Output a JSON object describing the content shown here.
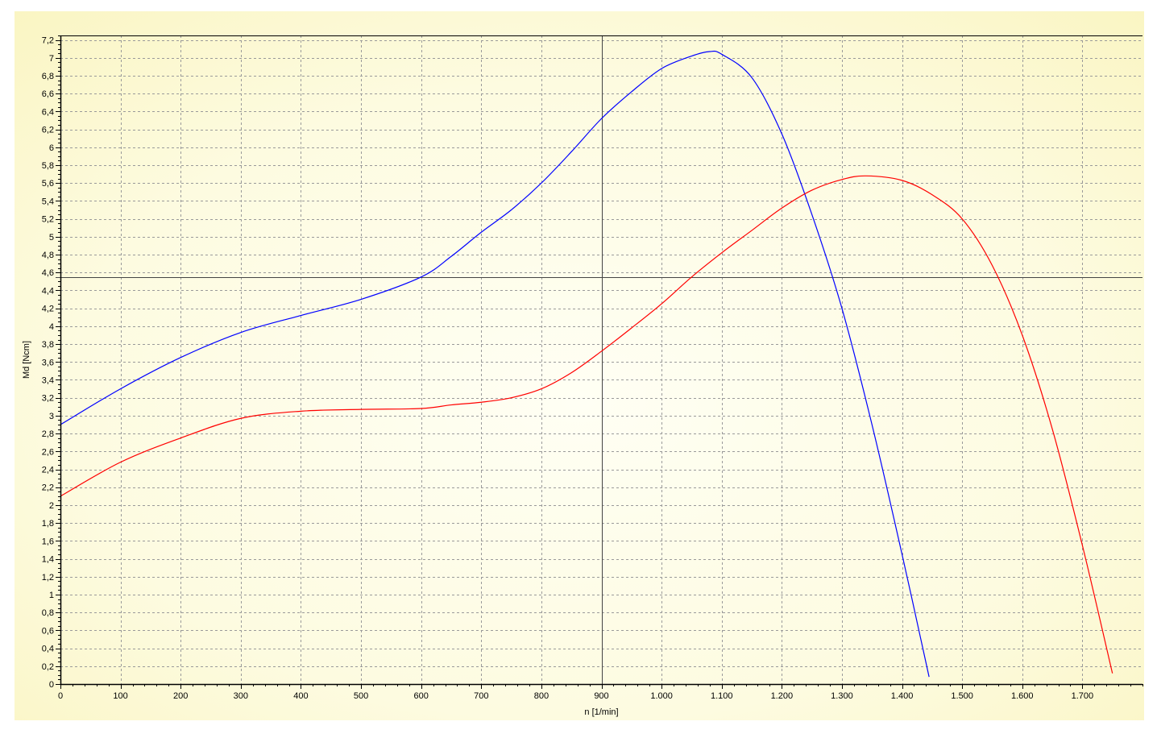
{
  "chart_data": {
    "type": "line",
    "title": "",
    "xlabel": "n [1/min]",
    "ylabel": "Md [Ncm]",
    "xlim": [
      0,
      1800
    ],
    "ylim": [
      0,
      7.25
    ],
    "x_ticks": [
      0,
      100,
      200,
      300,
      400,
      500,
      600,
      700,
      800,
      900,
      1000,
      1100,
      1200,
      1300,
      1400,
      1500,
      1600,
      1700
    ],
    "x_tick_labels": [
      "0",
      "100",
      "200",
      "300",
      "400",
      "500",
      "600",
      "700",
      "800",
      "900",
      "1.000",
      "1.100",
      "1.200",
      "1.300",
      "1.400",
      "1.500",
      "1.600",
      "1.700"
    ],
    "x_minor_step": 20,
    "y_ticks": [
      0,
      0.2,
      0.4,
      0.6,
      0.8,
      1,
      1.2,
      1.4,
      1.6,
      1.8,
      2,
      2.2,
      2.4,
      2.6,
      2.8,
      3,
      3.2,
      3.4,
      3.6,
      3.8,
      4,
      4.2,
      4.4,
      4.6,
      4.8,
      5,
      5.2,
      5.4,
      5.6,
      5.8,
      6,
      6.2,
      6.4,
      6.6,
      6.8,
      7,
      7.2
    ],
    "y_tick_labels": [
      "0",
      "0,2",
      "0,4",
      "0,6",
      "0,8",
      "1",
      "1,2",
      "1,4",
      "1,6",
      "1,8",
      "2",
      "2,2",
      "2,4",
      "2,6",
      "2,8",
      "3",
      "3,2",
      "3,4",
      "3,6",
      "3,8",
      "4",
      "4,2",
      "4,4",
      "4,6",
      "4,8",
      "5",
      "5,2",
      "5,4",
      "5,6",
      "5,8",
      "6",
      "6,2",
      "6,4",
      "6,6",
      "6,8",
      "7",
      "7,2"
    ],
    "y_minor_step": 0.05,
    "grid": true,
    "crosshair": {
      "x": 900,
      "y": 4.55
    },
    "background": {
      "top": "#fdfbe0",
      "center": "#fffff4",
      "bottom": "#faf5c2"
    },
    "colors": {
      "grid": "#9a9a9a",
      "axis": "#000000",
      "crosshair": "#444444"
    },
    "series": [
      {
        "color": "#0000ff",
        "x": [
          0,
          100,
          200,
          300,
          400,
          500,
          600,
          650,
          700,
          750,
          800,
          850,
          900,
          950,
          1000,
          1050,
          1080,
          1100,
          1150,
          1200,
          1250,
          1300,
          1350,
          1400,
          1445
        ],
        "y": [
          2.9,
          3.3,
          3.65,
          3.93,
          4.12,
          4.3,
          4.55,
          4.78,
          5.05,
          5.3,
          5.6,
          5.95,
          6.32,
          6.62,
          6.88,
          7.02,
          7.07,
          7.04,
          6.78,
          6.15,
          5.25,
          4.2,
          2.9,
          1.45,
          0.08
        ]
      },
      {
        "color": "#ff0000",
        "x": [
          0,
          100,
          200,
          300,
          400,
          500,
          600,
          650,
          700,
          750,
          800,
          850,
          900,
          950,
          1000,
          1050,
          1100,
          1150,
          1200,
          1250,
          1300,
          1340,
          1400,
          1450,
          1500,
          1550,
          1600,
          1650,
          1700,
          1750
        ],
        "y": [
          2.1,
          2.48,
          2.75,
          2.97,
          3.05,
          3.07,
          3.08,
          3.12,
          3.15,
          3.2,
          3.3,
          3.48,
          3.72,
          3.98,
          4.25,
          4.55,
          4.82,
          5.07,
          5.32,
          5.52,
          5.64,
          5.68,
          5.63,
          5.47,
          5.2,
          4.68,
          3.9,
          2.85,
          1.55,
          0.12
        ]
      }
    ]
  }
}
